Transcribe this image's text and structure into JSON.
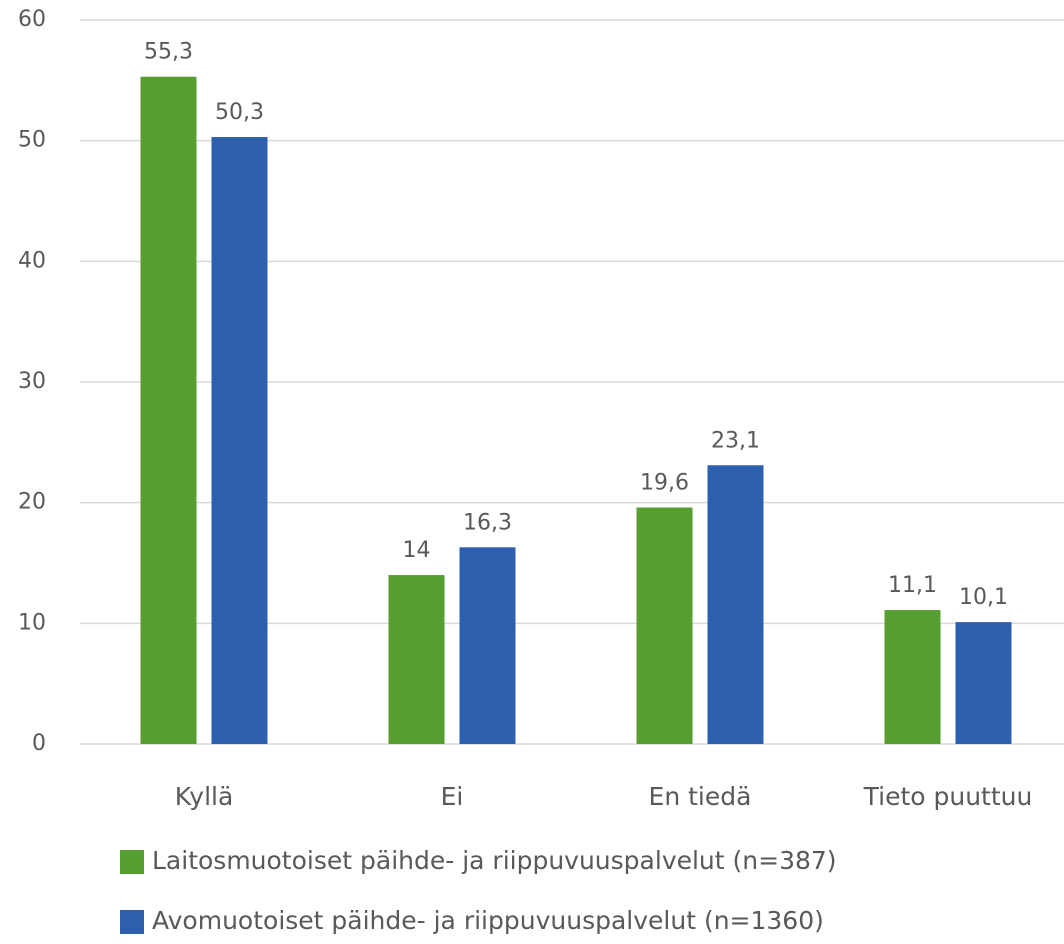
{
  "chart_data": {
    "type": "bar",
    "categories": [
      "Kyllä",
      "Ei",
      "En tiedä",
      "Tieto puuttuu"
    ],
    "series": [
      {
        "name": "Laitosmuotoiset päihde- ja riippuvuuspalvelut (n=387)",
        "color": "#559e31",
        "values": [
          55.3,
          14,
          19.6,
          11.1
        ],
        "value_labels": [
          "55,3",
          "14",
          "19,6",
          "11,1"
        ]
      },
      {
        "name": "Avomuotoiset päihde- ja riippuvuuspalvelut (n=1360)",
        "color": "#2e5fac",
        "values": [
          50.3,
          16.3,
          23.1,
          10.1
        ],
        "value_labels": [
          "50,3",
          "16,3",
          "23,1",
          "10,1"
        ]
      }
    ],
    "ylim": [
      0,
      60
    ],
    "yticks": [
      0,
      10,
      20,
      30,
      40,
      50,
      60
    ],
    "grid": true,
    "legend": "bottom"
  }
}
